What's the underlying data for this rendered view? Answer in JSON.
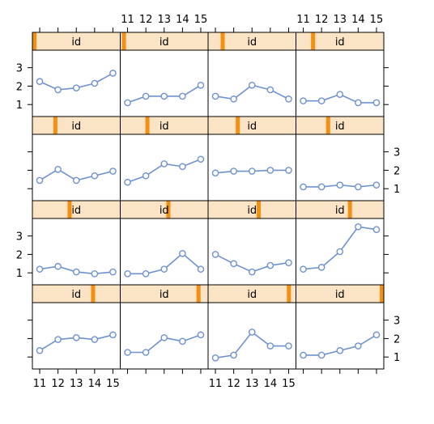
{
  "chart_data": {
    "type": "line",
    "layout": {
      "columns": 4,
      "rows": 4
    },
    "x": [
      11,
      12,
      13,
      14,
      15
    ],
    "xlim": [
      10.6,
      15.4
    ],
    "ylim": [
      0.35,
      3.95
    ],
    "x_ticks": [
      "11",
      "12",
      "13",
      "14",
      "15"
    ],
    "y_ticks": [
      "1",
      "2",
      "3"
    ],
    "strip_label": "id",
    "colors": {
      "line": "#6f92cf",
      "marker": "#6f92cf",
      "strip_fill": "#fbe3c6",
      "strip_marker": "#f58f12",
      "frame": "#000000"
    },
    "panels": [
      {
        "strip_marker_fraction": 0.0,
        "values": [
          2.25,
          1.8,
          1.9,
          2.15,
          2.7
        ]
      },
      {
        "strip_marker_fraction": 0.02,
        "values": [
          1.1,
          1.45,
          1.45,
          1.45,
          2.05
        ]
      },
      {
        "strip_marker_fraction": 0.15,
        "values": [
          1.45,
          1.3,
          2.05,
          1.8,
          1.3
        ]
      },
      {
        "strip_marker_fraction": 0.18,
        "values": [
          1.2,
          1.2,
          1.55,
          1.1,
          1.1
        ]
      },
      {
        "strip_marker_fraction": 0.25,
        "values": [
          1.45,
          2.05,
          1.45,
          1.7,
          1.95
        ]
      },
      {
        "strip_marker_fraction": 0.3,
        "values": [
          1.35,
          1.7,
          2.35,
          2.2,
          2.6
        ]
      },
      {
        "strip_marker_fraction": 0.33,
        "values": [
          1.85,
          1.95,
          1.95,
          2.0,
          2.0
        ]
      },
      {
        "strip_marker_fraction": 0.36,
        "values": [
          1.1,
          1.1,
          1.2,
          1.1,
          1.2
        ]
      },
      {
        "strip_marker_fraction": 0.42,
        "values": [
          1.2,
          1.35,
          1.05,
          0.95,
          1.05
        ]
      },
      {
        "strip_marker_fraction": 0.55,
        "values": [
          0.95,
          0.95,
          1.2,
          2.05,
          1.2
        ]
      },
      {
        "strip_marker_fraction": 0.58,
        "values": [
          2.0,
          1.5,
          1.05,
          1.4,
          1.55
        ]
      },
      {
        "strip_marker_fraction": 0.62,
        "values": [
          1.2,
          1.3,
          2.15,
          3.5,
          3.35
        ]
      },
      {
        "strip_marker_fraction": 0.7,
        "values": [
          1.35,
          1.95,
          2.05,
          1.95,
          2.2
        ]
      },
      {
        "strip_marker_fraction": 0.91,
        "values": [
          1.25,
          1.25,
          2.05,
          1.85,
          2.2
        ]
      },
      {
        "strip_marker_fraction": 0.94,
        "values": [
          0.95,
          1.1,
          2.35,
          1.6,
          1.6
        ]
      },
      {
        "strip_marker_fraction": 1.0,
        "values": [
          1.1,
          1.1,
          1.35,
          1.6,
          2.2
        ]
      }
    ]
  }
}
